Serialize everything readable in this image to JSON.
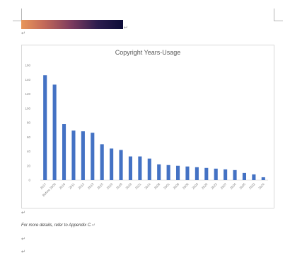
{
  "document": {
    "paragraph_mark": "↵",
    "note": "For more details, refer to Appendix C."
  },
  "chart_data": {
    "type": "bar",
    "title": "Copyright Years-Usage",
    "xlabel": "",
    "ylabel": "",
    "ylim": [
      0,
      160
    ],
    "yticks": [
      0,
      20,
      40,
      60,
      80,
      100,
      120,
      140,
      160
    ],
    "categories": [
      "2017",
      "Before 2000",
      "2016",
      "2011",
      "2012",
      "2013",
      "2015",
      "2010",
      "2018",
      "2019",
      "2021",
      "2014",
      "2008",
      "2001",
      "2009",
      "2006",
      "2003",
      "2020",
      "2022",
      "2007",
      "2004",
      "2005",
      "2002",
      "2024"
    ],
    "values": [
      146,
      133,
      78,
      69,
      68,
      66,
      50,
      44,
      42,
      33,
      33,
      30,
      22,
      21,
      20,
      19,
      18,
      17,
      16,
      15,
      14,
      10,
      8,
      4
    ],
    "bar_color": "#4472c4",
    "grid": false,
    "legend": "none"
  }
}
